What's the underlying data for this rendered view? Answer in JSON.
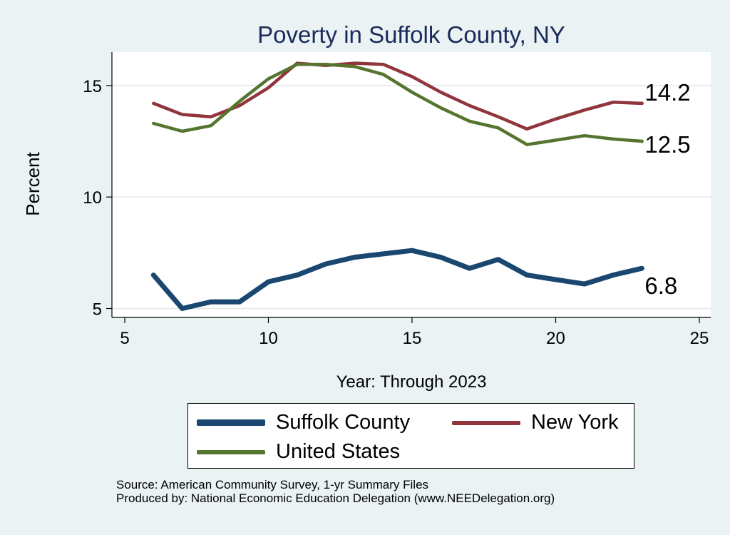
{
  "chart_data": {
    "type": "line",
    "title": "Poverty in Suffolk County, NY",
    "xlabel": "Year: Through 2023",
    "ylabel": "Percent",
    "xlim": [
      5,
      25
    ],
    "ylim": [
      4.6,
      16.5
    ],
    "xticks": [
      5,
      10,
      15,
      20,
      25
    ],
    "yticks": [
      5,
      10,
      15
    ],
    "grid": true,
    "series": [
      {
        "name": "Suffolk County",
        "color": "#1a476f",
        "x": [
          6,
          7,
          8,
          9,
          10,
          11,
          12,
          13,
          14,
          15,
          16,
          17,
          18,
          19,
          20,
          21,
          22,
          23
        ],
        "values": [
          6.5,
          5.0,
          5.3,
          5.3,
          6.2,
          6.5,
          7.0,
          7.3,
          7.45,
          7.6,
          7.3,
          6.8,
          7.2,
          6.5,
          6.3,
          6.1,
          6.5,
          6.8
        ],
        "end_label": "6.8"
      },
      {
        "name": "New York",
        "color": "#90353b",
        "x": [
          6,
          7,
          8,
          9,
          10,
          11,
          12,
          13,
          14,
          15,
          16,
          17,
          18,
          19,
          20,
          21,
          22,
          23
        ],
        "values": [
          14.2,
          13.7,
          13.6,
          14.1,
          14.9,
          16.0,
          15.9,
          16.0,
          15.95,
          15.4,
          14.7,
          14.1,
          13.6,
          13.05,
          13.5,
          13.9,
          14.25,
          14.2
        ],
        "end_label": "14.2"
      },
      {
        "name": "United States",
        "color": "#55752f",
        "x": [
          6,
          7,
          8,
          9,
          10,
          11,
          12,
          13,
          14,
          15,
          16,
          17,
          18,
          19,
          20,
          21,
          22,
          23
        ],
        "values": [
          13.3,
          12.95,
          13.2,
          14.3,
          15.3,
          15.95,
          15.95,
          15.85,
          15.5,
          14.7,
          14.0,
          13.4,
          13.1,
          12.35,
          12.55,
          12.75,
          12.6,
          12.5
        ],
        "end_label": "12.5"
      }
    ],
    "legend": {
      "position": "bottom",
      "entries": [
        "Suffolk County",
        "New York",
        "United States"
      ]
    },
    "notes": [
      "Source: American Community Survey, 1-yr Summary Files",
      "Produced by: National Economic Education Delegation (www.NEEDelegation.org)"
    ]
  }
}
